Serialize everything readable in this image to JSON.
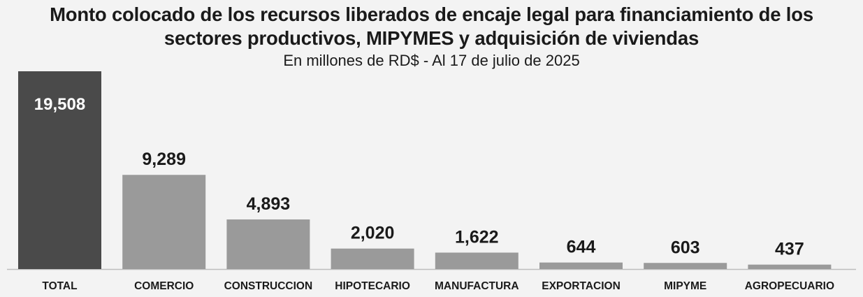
{
  "chart_data": {
    "type": "bar",
    "title_lines": [
      "Monto colocado de los recursos liberados de encaje legal para financiamiento de los",
      "sectores productivos, MIPYMES y adquisición de viviendas"
    ],
    "subtitle": "En millones de RD$ - Al 17 de julio de 2025",
    "categories": [
      "TOTAL",
      "COMERCIO",
      "CONSTRUCCION",
      "HIPOTECARIO",
      "MANUFACTURA",
      "EXPORTACION",
      "MIPYME",
      "AGROPECUARIO"
    ],
    "values": [
      19508,
      9289,
      4893,
      2020,
      1622,
      644,
      603,
      437
    ],
    "value_labels": [
      "19,508",
      "9,289",
      "4,893",
      "2,020",
      "1,622",
      "644",
      "603",
      "437"
    ],
    "xlabel": "",
    "ylabel": "",
    "ylim": [
      0,
      19508
    ],
    "grid": false,
    "legend": "none",
    "colors": {
      "total": "#4a4a4a",
      "sector": "#9a9a9a",
      "baseline": "#bdbdbd",
      "total_label": "#ffffff",
      "label": "#1a1a1a"
    }
  }
}
